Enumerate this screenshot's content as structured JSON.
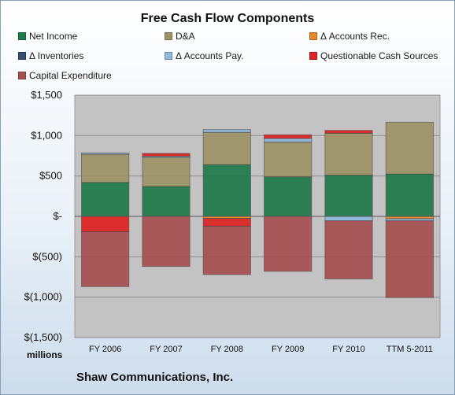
{
  "chart_data": {
    "type": "bar",
    "stacked": true,
    "title": "Free Cash Flow Components",
    "ylabel": "",
    "xlabel": "",
    "units_label": "millions",
    "footer": "Shaw Communications, Inc.",
    "ylim": [
      -1500,
      1500
    ],
    "yticks": [
      1500,
      1000,
      500,
      0,
      -500,
      -1000,
      -1500
    ],
    "ytick_labels": [
      "$1,500",
      "$1,000",
      "$500",
      "$-",
      "$(500)",
      "$(1,000)",
      "$(1,500)"
    ],
    "categories": [
      "FY 2006",
      "FY 2007",
      "FY 2008",
      "FY 2009",
      "FY 2010",
      "TTM 5-2011"
    ],
    "legend_position": "top",
    "series": [
      {
        "name": "Net Income",
        "color": "#1f7a4a",
        "values": [
          420,
          370,
          640,
          490,
          510,
          525
        ]
      },
      {
        "name": "D&A",
        "color": "#9e9366",
        "values": [
          350,
          360,
          400,
          430,
          520,
          640
        ]
      },
      {
        "name": "Δ Accounts Rec.",
        "color": "#e8882a",
        "values": [
          0,
          0,
          -25,
          0,
          0,
          -30
        ]
      },
      {
        "name": "Δ Inventories",
        "color": "#34506e",
        "values": [
          0,
          0,
          0,
          0,
          0,
          0
        ]
      },
      {
        "name": "Δ Accounts Pay.",
        "color": "#8fb8dc",
        "values": [
          15,
          15,
          35,
          45,
          -55,
          -25
        ]
      },
      {
        "name": "Questionable Cash Sources",
        "color": "#e02222",
        "values": [
          0,
          35,
          0,
          45,
          35,
          0
        ]
      },
      {
        "name": "Capital Expenditure",
        "color": "#a64f4f",
        "values": [
          -680,
          -620,
          -600,
          -680,
          -720,
          -950
        ]
      }
    ],
    "extra_negative_questionable": [
      -190,
      0,
      -95,
      0,
      0,
      0
    ]
  }
}
